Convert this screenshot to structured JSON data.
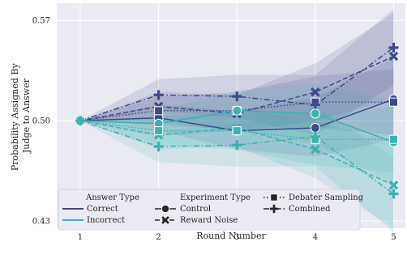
{
  "chart_data": {
    "type": "line",
    "title": "",
    "xlabel": "Round Number",
    "ylabel": "Probability Assigned By Judge to Answer",
    "ylabel_lines": [
      "Probability Assigned By",
      "Judge to Answer"
    ],
    "x": [
      1,
      2,
      3,
      4,
      5
    ],
    "xlim": [
      0.7,
      5.15
    ],
    "ylim": [
      0.425,
      0.582
    ],
    "yticks": [
      0.43,
      0.5,
      0.57
    ],
    "ytick_labels": [
      "0.43",
      "0.50",
      "0.57"
    ],
    "xtick_labels": [
      "1",
      "2",
      "3",
      "4",
      "5"
    ],
    "grid": true,
    "background": "#EAEAF2",
    "legend": {
      "placement": "lower-left",
      "answer_title": "Answer Type",
      "answer_entries": [
        {
          "label": "Correct",
          "color": "#3F4A8A"
        },
        {
          "label": "Incorrect",
          "color": "#3BB3B0"
        }
      ],
      "experiment_title": "Experiment Type",
      "experiment_entries": [
        {
          "label": "Control",
          "marker": "circle",
          "dash": "solid"
        },
        {
          "label": "Reward Noise",
          "marker": "x",
          "dash": "dashed"
        },
        {
          "label": "Debater Sampling",
          "marker": "square",
          "dash": "dotted"
        },
        {
          "label": "Combined",
          "marker": "plus",
          "dash": "dashdot"
        }
      ]
    },
    "series": [
      {
        "answer": "Correct",
        "experiment": "Control",
        "color": "#3F4A8A",
        "values": [
          0.5,
          0.502,
          0.493,
          0.495,
          0.515
        ],
        "ci": [
          [
            0.5,
            0.5
          ],
          [
            0.493,
            0.511
          ],
          [
            0.48,
            0.507
          ],
          [
            0.475,
            0.516
          ],
          [
            0.487,
            0.544
          ]
        ]
      },
      {
        "answer": "Correct",
        "experiment": "Reward Noise",
        "color": "#3F4A8A",
        "values": [
          0.5,
          0.51,
          0.505,
          0.52,
          0.545
        ],
        "ci": [
          [
            0.5,
            0.5
          ],
          [
            0.5,
            0.52
          ],
          [
            0.492,
            0.518
          ],
          [
            0.5,
            0.54
          ],
          [
            0.515,
            0.575
          ]
        ]
      },
      {
        "answer": "Correct",
        "experiment": "Debater Sampling",
        "color": "#3F4A8A",
        "values": [
          0.5,
          0.507,
          0.507,
          0.513,
          0.513
        ],
        "ci": [
          [
            0.5,
            0.5
          ],
          [
            0.497,
            0.517
          ],
          [
            0.494,
            0.52
          ],
          [
            0.495,
            0.531
          ],
          [
            0.49,
            0.536
          ]
        ]
      },
      {
        "answer": "Correct",
        "experiment": "Combined",
        "color": "#3F4A8A",
        "values": [
          0.5,
          0.518,
          0.517,
          0.511,
          0.551
        ],
        "ci": [
          [
            0.5,
            0.5
          ],
          [
            0.507,
            0.529
          ],
          [
            0.502,
            0.532
          ],
          [
            0.49,
            0.532
          ],
          [
            0.525,
            0.578
          ]
        ]
      },
      {
        "answer": "Incorrect",
        "experiment": "Control",
        "color": "#3BB3B0",
        "values": [
          0.5,
          0.498,
          0.507,
          0.505,
          0.485
        ],
        "ci": [
          [
            0.5,
            0.5
          ],
          [
            0.489,
            0.507
          ],
          [
            0.493,
            0.521
          ],
          [
            0.484,
            0.526
          ],
          [
            0.456,
            0.514
          ]
        ]
      },
      {
        "answer": "Incorrect",
        "experiment": "Reward Noise",
        "color": "#3BB3B0",
        "values": [
          0.5,
          0.49,
          0.495,
          0.48,
          0.455
        ],
        "ci": [
          [
            0.5,
            0.5
          ],
          [
            0.48,
            0.5
          ],
          [
            0.482,
            0.508
          ],
          [
            0.46,
            0.5
          ],
          [
            0.425,
            0.485
          ]
        ]
      },
      {
        "answer": "Incorrect",
        "experiment": "Debater Sampling",
        "color": "#3BB3B0",
        "values": [
          0.5,
          0.493,
          0.493,
          0.487,
          0.487
        ],
        "ci": [
          [
            0.5,
            0.5
          ],
          [
            0.483,
            0.503
          ],
          [
            0.48,
            0.506
          ],
          [
            0.469,
            0.505
          ],
          [
            0.464,
            0.51
          ]
        ]
      },
      {
        "answer": "Incorrect",
        "experiment": "Combined",
        "color": "#3BB3B0",
        "values": [
          0.5,
          0.482,
          0.483,
          0.489,
          0.449
        ],
        "ci": [
          [
            0.5,
            0.5
          ],
          [
            0.471,
            0.493
          ],
          [
            0.468,
            0.498
          ],
          [
            0.468,
            0.51
          ],
          [
            0.422,
            0.475
          ]
        ]
      }
    ]
  }
}
